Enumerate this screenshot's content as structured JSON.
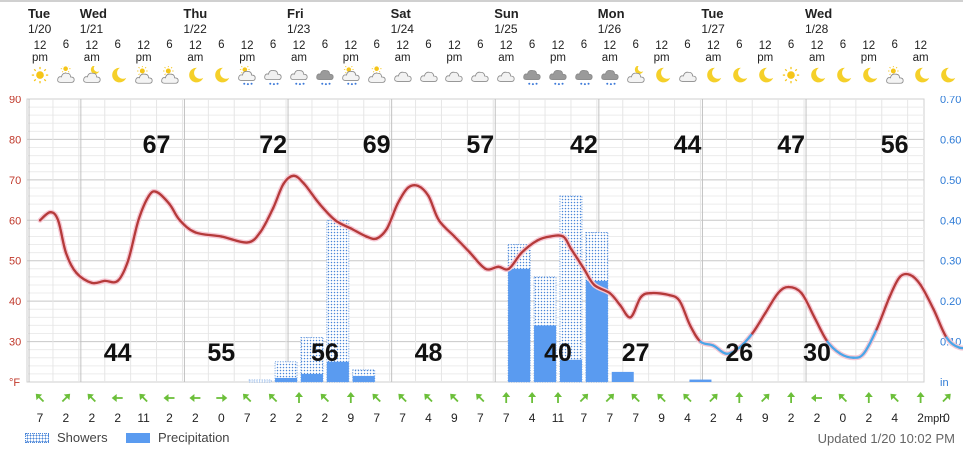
{
  "header": {
    "days": [
      {
        "name": "Tue",
        "date": "1/20",
        "col": 0
      },
      {
        "name": "Wed",
        "date": "1/21",
        "col": 2
      },
      {
        "name": "Thu",
        "date": "1/22",
        "col": 6
      },
      {
        "name": "Fri",
        "date": "1/23",
        "col": 10
      },
      {
        "name": "Sat",
        "date": "1/24",
        "col": 14
      },
      {
        "name": "Sun",
        "date": "1/25",
        "col": 18
      },
      {
        "name": "Mon",
        "date": "1/26",
        "col": 22
      },
      {
        "name": "Tue",
        "date": "1/27",
        "col": 26
      },
      {
        "name": "Wed",
        "date": "1/28",
        "col": 30
      }
    ],
    "hours": [
      "12 pm",
      "6",
      "12 am",
      "6",
      "12 pm",
      "6",
      "12 am",
      "6",
      "12 pm",
      "6",
      "12 am",
      "6",
      "12 pm",
      "6",
      "12 am",
      "6",
      "12 pm",
      "6",
      "12 am",
      "6",
      "12 pm",
      "6",
      "12 am",
      "6",
      "12 pm",
      "6",
      "12 am",
      "6",
      "12 pm",
      "6",
      "12 am",
      "6",
      "12 pm",
      "6",
      "12 am"
    ],
    "icons": [
      "sun-icon",
      "partly-cloudy-icon",
      "partly-cloudy-night-icon",
      "moon-icon",
      "partly-sunny-icon",
      "partly-sunny-icon",
      "moon-icon",
      "moon-icon",
      "partly-sunny-rain-icon",
      "rain-cloud-icon",
      "rain-cloud-icon",
      "heavy-rain-icon",
      "partly-sunny-rain-icon",
      "partly-cloudy-icon",
      "cloud-icon",
      "cloud-icon",
      "cloud-icon",
      "cloud-icon",
      "cloud-icon",
      "heavy-rain-icon",
      "heavy-rain-icon",
      "heavy-rain-icon",
      "heavy-rain-icon",
      "partly-cloudy-night-icon",
      "moon-icon",
      "cloud-icon",
      "moon-icon",
      "moon-icon",
      "moon-icon",
      "sun-icon",
      "moon-icon",
      "moon-icon",
      "moon-icon",
      "partly-sunny-icon",
      "moon-icon",
      "moon-icon"
    ]
  },
  "chart_data": {
    "type": "line",
    "x_labels": [
      "12 pm",
      "6",
      "12 am",
      "6",
      "12 pm",
      "6",
      "12 am",
      "6",
      "12 pm",
      "6",
      "12 am",
      "6",
      "12 pm",
      "6",
      "12 am",
      "6",
      "12 pm",
      "6",
      "12 am",
      "6",
      "12 pm",
      "6",
      "12 am",
      "6",
      "12 pm",
      "6",
      "12 am",
      "6",
      "12 pm",
      "6",
      "12 am",
      "6",
      "12 pm",
      "6",
      "12 am"
    ],
    "temperature": {
      "unit": "°F",
      "ylim": [
        20,
        90
      ],
      "ticks": [
        90,
        80,
        70,
        60,
        50,
        40,
        30
      ],
      "bottom_label": "°F",
      "points": [
        [
          0,
          60
        ],
        [
          0.4,
          62
        ],
        [
          0.7,
          60
        ],
        [
          1,
          52
        ],
        [
          1.4,
          47
        ],
        [
          2,
          44.5
        ],
        [
          2.5,
          45
        ],
        [
          3,
          45
        ],
        [
          3.4,
          50
        ],
        [
          3.8,
          60
        ],
        [
          4.2,
          66
        ],
        [
          4.5,
          67
        ],
        [
          5,
          64
        ],
        [
          5.4,
          60
        ],
        [
          6,
          57
        ],
        [
          7,
          56
        ],
        [
          8,
          54.5
        ],
        [
          8.5,
          57
        ],
        [
          9,
          63
        ],
        [
          9.4,
          69
        ],
        [
          9.8,
          71
        ],
        [
          10.2,
          69
        ],
        [
          10.8,
          64
        ],
        [
          11.4,
          60
        ],
        [
          12,
          58
        ],
        [
          12.6,
          56
        ],
        [
          13,
          55.5
        ],
        [
          13.4,
          58
        ],
        [
          13.8,
          64
        ],
        [
          14.2,
          68
        ],
        [
          14.6,
          68.5
        ],
        [
          15,
          66
        ],
        [
          15.4,
          60
        ],
        [
          16,
          56
        ],
        [
          16.6,
          52
        ],
        [
          17.2,
          48
        ],
        [
          17.7,
          48.5
        ],
        [
          18.1,
          48
        ],
        [
          18.6,
          52
        ],
        [
          19.2,
          55
        ],
        [
          19.7,
          56
        ],
        [
          20.2,
          56
        ],
        [
          20.5,
          53
        ],
        [
          21,
          48
        ],
        [
          21.4,
          44
        ],
        [
          22,
          42
        ],
        [
          22.4,
          39
        ],
        [
          22.8,
          36
        ],
        [
          23.2,
          41
        ],
        [
          23.6,
          42
        ],
        [
          24.3,
          41.5
        ],
        [
          24.7,
          40
        ],
        [
          25.1,
          34
        ],
        [
          25.5,
          30
        ],
        [
          26,
          29
        ],
        [
          26.5,
          27
        ],
        [
          27,
          28.5
        ],
        [
          27.5,
          32
        ],
        [
          28,
          37
        ],
        [
          28.5,
          42
        ],
        [
          28.9,
          43.5
        ],
        [
          29.4,
          42
        ],
        [
          29.9,
          36
        ],
        [
          30.4,
          30
        ],
        [
          30.9,
          27
        ],
        [
          31.4,
          26
        ],
        [
          31.8,
          27
        ],
        [
          32.3,
          33
        ],
        [
          32.8,
          41
        ],
        [
          33.2,
          46
        ],
        [
          33.6,
          46.5
        ],
        [
          34,
          44
        ],
        [
          34.5,
          38
        ],
        [
          35,
          31
        ],
        [
          35.5,
          28.5
        ],
        [
          36,
          29
        ],
        [
          36.5,
          31
        ],
        [
          37,
          38
        ],
        [
          37.5,
          47
        ],
        [
          37.9,
          54
        ],
        [
          38.3,
          56
        ],
        [
          38.7,
          55
        ],
        [
          39.1,
          50
        ],
        [
          39.5,
          45
        ],
        [
          40,
          42
        ]
      ],
      "cold_threshold": 32,
      "warm_color": "#b53a3a",
      "cold_color": "#4aa6e8",
      "highs": [
        {
          "value": 67,
          "col": 4.5
        },
        {
          "value": 72,
          "col": 9
        },
        {
          "value": 69,
          "col": 13
        },
        {
          "value": 57,
          "col": 17
        },
        {
          "value": 42,
          "col": 21
        },
        {
          "value": 44,
          "col": 25
        },
        {
          "value": 47,
          "col": 29
        },
        {
          "value": 56,
          "col": 33
        }
      ],
      "lows": [
        {
          "value": 44,
          "col": 3
        },
        {
          "value": 55,
          "col": 7
        },
        {
          "value": 56,
          "col": 11
        },
        {
          "value": 48,
          "col": 15
        },
        {
          "value": 40,
          "col": 20
        },
        {
          "value": 27,
          "col": 23
        },
        {
          "value": 26,
          "col": 27
        },
        {
          "value": 30,
          "col": 30
        }
      ]
    },
    "precipitation": {
      "unit": "in",
      "ylim": [
        0,
        0.7
      ],
      "ticks": [
        "0.70",
        "0.60",
        "0.50",
        "0.40",
        "0.30",
        "0.20",
        "0.10"
      ],
      "bottom_label": "in",
      "bars": [
        {
          "col": 8,
          "showers": 0.005,
          "precip": 0.0
        },
        {
          "col": 9,
          "showers": 0.05,
          "precip": 0.01
        },
        {
          "col": 10,
          "showers": 0.11,
          "precip": 0.02
        },
        {
          "col": 11,
          "showers": 0.4,
          "precip": 0.05
        },
        {
          "col": 12,
          "showers": 0.03,
          "precip": 0.015
        },
        {
          "col": 18,
          "showers": 0.34,
          "precip": 0.28
        },
        {
          "col": 19,
          "showers": 0.26,
          "precip": 0.14
        },
        {
          "col": 20,
          "showers": 0.46,
          "precip": 0.055
        },
        {
          "col": 21,
          "showers": 0.37,
          "precip": 0.25
        },
        {
          "col": 22,
          "showers": 0.0,
          "precip": 0.025
        },
        {
          "col": 25,
          "showers": 0.0,
          "precip": 0.006
        }
      ],
      "showers_color": "#4a86d8",
      "precip_color": "#5a9bf0"
    },
    "wind": {
      "unit": "mph",
      "speeds": [
        "7",
        "2",
        "2",
        "2",
        "11",
        "2",
        "2",
        "0",
        "7",
        "2",
        "2",
        "2",
        "9",
        "7",
        "7",
        "4",
        "9",
        "7",
        "7",
        "4",
        "11",
        "7",
        "7",
        "7",
        "9",
        "4",
        "2",
        "4",
        "9",
        "2",
        "2",
        "0",
        "2",
        "4",
        "2",
        "0"
      ],
      "directions_deg": [
        315,
        45,
        315,
        270,
        315,
        270,
        270,
        90,
        315,
        315,
        0,
        315,
        0,
        315,
        315,
        315,
        315,
        315,
        0,
        0,
        0,
        45,
        45,
        315,
        315,
        315,
        45,
        0,
        45,
        0,
        270,
        315,
        0,
        315,
        0,
        45
      ],
      "arrow_color": "#6cbf3a"
    },
    "grid": true
  },
  "footer": {
    "showers_label": "Showers",
    "precip_label": "Precipitation",
    "updated": "Updated 1/20 10:02 PM"
  }
}
